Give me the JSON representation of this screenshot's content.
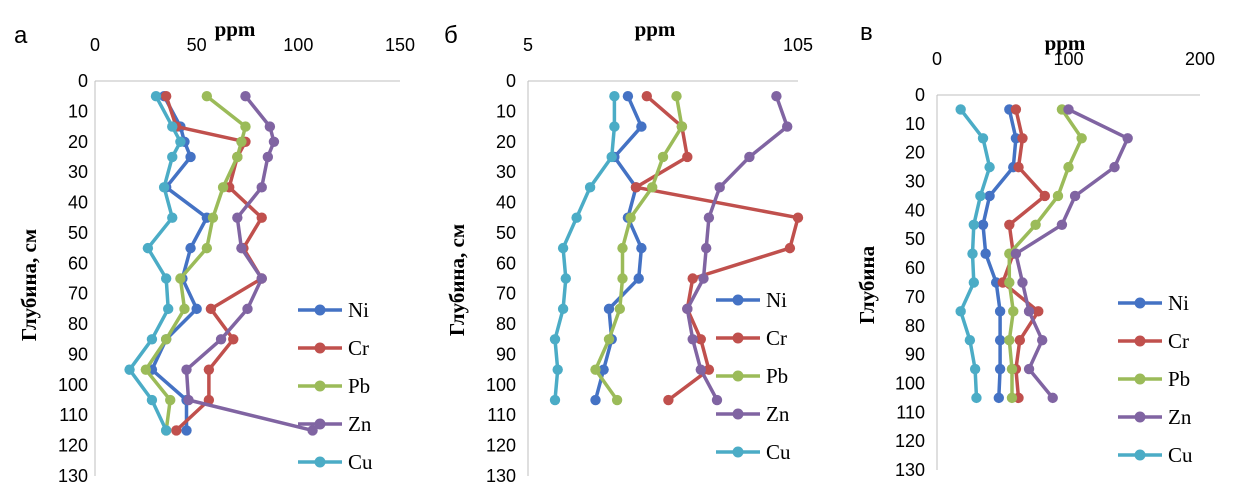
{
  "chart_data": [
    {
      "type": "line",
      "panel_label": "а",
      "title": "",
      "xlabel": "ppm",
      "ylabel": "Глубина, см",
      "xlim": [
        0,
        150
      ],
      "xticks": [
        "0",
        "50",
        "100",
        "150"
      ],
      "ylim": [
        0,
        130
      ],
      "yticks": [
        "0",
        "10",
        "20",
        "30",
        "40",
        "50",
        "60",
        "70",
        "80",
        "90",
        "100",
        "110",
        "120",
        "130"
      ],
      "y_inverted": true,
      "x_axis_position": "top",
      "legend_position": "bottom-right",
      "series": [
        {
          "name": "Ni",
          "color": "#4472C4",
          "x": [
            34,
            42,
            44,
            47,
            35,
            55,
            47,
            43,
            50,
            35,
            28,
            45,
            45
          ],
          "y": [
            5,
            15,
            20,
            25,
            35,
            45,
            55,
            65,
            75,
            85,
            95,
            105,
            115
          ]
        },
        {
          "name": "Cr",
          "color": "#C0504D",
          "x": [
            35,
            40,
            74,
            70,
            66,
            82,
            73,
            82,
            57,
            68,
            56,
            56,
            40
          ],
          "y": [
            5,
            15,
            20,
            25,
            35,
            45,
            55,
            65,
            75,
            85,
            95,
            105,
            115
          ]
        },
        {
          "name": "Pb",
          "color": "#9BBB59",
          "x": [
            55,
            74,
            72,
            70,
            63,
            58,
            55,
            42,
            44,
            35,
            25,
            37,
            35
          ],
          "y": [
            5,
            15,
            20,
            25,
            35,
            45,
            55,
            65,
            75,
            85,
            95,
            105,
            115
          ]
        },
        {
          "name": "Zn",
          "color": "#8064A2",
          "x": [
            74,
            86,
            88,
            85,
            82,
            70,
            72,
            82,
            75,
            62,
            45,
            46,
            107
          ],
          "y": [
            5,
            15,
            20,
            25,
            35,
            45,
            55,
            65,
            75,
            85,
            95,
            105,
            115
          ]
        },
        {
          "name": "Cu",
          "color": "#4BACC6",
          "x": [
            30,
            38,
            42,
            38,
            34,
            38,
            26,
            35,
            36,
            28,
            17,
            28,
            35
          ],
          "y": [
            5,
            15,
            20,
            25,
            35,
            45,
            55,
            65,
            75,
            85,
            95,
            105,
            115
          ]
        }
      ]
    },
    {
      "type": "line",
      "panel_label": "б",
      "title": "",
      "xlabel": "ppm",
      "ylabel": "Глубина, см",
      "xlim": [
        5,
        105
      ],
      "xticks": [
        "5",
        "105"
      ],
      "ylim": [
        0,
        130
      ],
      "yticks": [
        "0",
        "10",
        "20",
        "30",
        "40",
        "50",
        "60",
        "70",
        "80",
        "90",
        "100",
        "110",
        "120",
        "130"
      ],
      "y_inverted": true,
      "x_axis_position": "top",
      "legend_position": "bottom-right",
      "series": [
        {
          "name": "Ni",
          "color": "#4472C4",
          "x": [
            42,
            47,
            37,
            45,
            42,
            47,
            46,
            35,
            36,
            33,
            30
          ],
          "y": [
            5,
            15,
            25,
            35,
            45,
            55,
            65,
            75,
            85,
            95,
            105
          ]
        },
        {
          "name": "Cr",
          "color": "#C0504D",
          "x": [
            49,
            62,
            64,
            45,
            105,
            102,
            66,
            64,
            69,
            72,
            57
          ],
          "y": [
            5,
            15,
            25,
            35,
            45,
            55,
            65,
            75,
            85,
            95,
            105
          ]
        },
        {
          "name": "Pb",
          "color": "#9BBB59",
          "x": [
            60,
            62,
            55,
            51,
            43,
            40,
            40,
            39,
            35,
            30,
            38
          ],
          "y": [
            5,
            15,
            25,
            35,
            45,
            55,
            65,
            75,
            85,
            95,
            105
          ]
        },
        {
          "name": "Zn",
          "color": "#8064A2",
          "x": [
            97,
            101,
            87,
            76,
            72,
            71,
            70,
            64,
            66,
            69,
            75
          ],
          "y": [
            5,
            15,
            25,
            35,
            45,
            55,
            65,
            75,
            85,
            95,
            105
          ]
        },
        {
          "name": "Cu",
          "color": "#4BACC6",
          "x": [
            37,
            37,
            36,
            28,
            23,
            18,
            19,
            18,
            15,
            16,
            15
          ],
          "y": [
            5,
            15,
            25,
            35,
            45,
            55,
            65,
            75,
            85,
            95,
            105
          ]
        }
      ]
    },
    {
      "type": "line",
      "panel_label": "в",
      "title": "",
      "xlabel": "ppm",
      "ylabel": "Глубина",
      "xlim": [
        0,
        200
      ],
      "xticks": [
        "0",
        "100",
        "200"
      ],
      "ylim": [
        0,
        130
      ],
      "yticks": [
        "0",
        "10",
        "20",
        "30",
        "40",
        "50",
        "60",
        "70",
        "80",
        "90",
        "100",
        "110",
        "120",
        "130"
      ],
      "y_inverted": true,
      "x_axis_position": "top",
      "legend_position": "bottom-right",
      "series": [
        {
          "name": "Ni",
          "color": "#4472C4",
          "x": [
            55,
            60,
            58,
            40,
            35,
            37,
            45,
            48,
            48,
            48,
            47
          ],
          "y": [
            5,
            15,
            25,
            35,
            45,
            55,
            65,
            75,
            85,
            95,
            105
          ]
        },
        {
          "name": "Cr",
          "color": "#C0504D",
          "x": [
            60,
            65,
            62,
            82,
            55,
            58,
            50,
            77,
            63,
            60,
            62
          ],
          "y": [
            5,
            15,
            25,
            35,
            45,
            55,
            65,
            75,
            85,
            95,
            105
          ]
        },
        {
          "name": "Pb",
          "color": "#9BBB59",
          "x": [
            95,
            110,
            100,
            92,
            75,
            55,
            55,
            58,
            55,
            57,
            57
          ],
          "y": [
            5,
            15,
            25,
            35,
            45,
            55,
            65,
            75,
            85,
            95,
            105
          ]
        },
        {
          "name": "Zn",
          "color": "#8064A2",
          "x": [
            100,
            145,
            135,
            105,
            95,
            60,
            65,
            70,
            80,
            70,
            88
          ],
          "y": [
            5,
            15,
            25,
            35,
            45,
            55,
            65,
            75,
            85,
            95,
            105
          ]
        },
        {
          "name": "Cu",
          "color": "#4BACC6",
          "x": [
            18,
            35,
            40,
            33,
            28,
            27,
            28,
            18,
            25,
            29,
            30
          ],
          "y": [
            5,
            15,
            25,
            35,
            45,
            55,
            65,
            75,
            85,
            95,
            105
          ]
        }
      ]
    }
  ]
}
